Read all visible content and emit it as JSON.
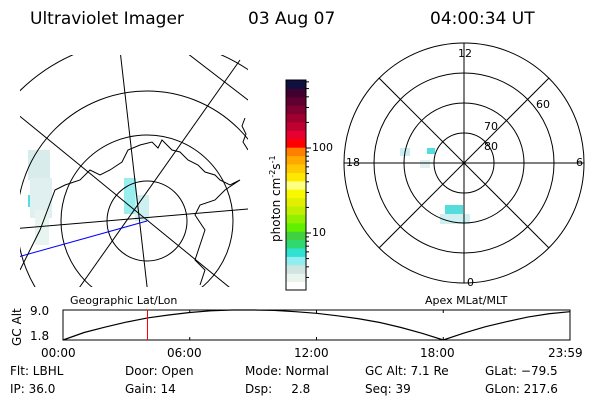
{
  "header": {
    "instrument": "Ultraviolet Imager",
    "date": "03 Aug 07",
    "time": "04:00:34 UT"
  },
  "left_map": {
    "label": "Geographic Lat/Lon"
  },
  "right_map": {
    "label": "Apex MLat/MLT",
    "mlt_labels": [
      "12",
      "18",
      "6",
      "0"
    ],
    "lat_labels": [
      "60",
      "70",
      "80"
    ]
  },
  "colorbar": {
    "unit_label": "photon cm",
    "unit_sup1": "-2",
    "unit_mid": "s",
    "unit_sup2": "-1",
    "tick_labels": [
      "100",
      "10"
    ],
    "scale": "log",
    "range": [
      2,
      630
    ],
    "colors": [
      "#ffffff",
      "#e8f4ec",
      "#d0e4e0",
      "#90eef0",
      "#30e0d0",
      "#30d870",
      "#40d040",
      "#60f000",
      "#90f000",
      "#c0f000",
      "#e0f000",
      "#f8f800",
      "#ffff80",
      "#ffe800",
      "#ffc800",
      "#ffa800",
      "#ff8000",
      "#ff0000",
      "#e80030",
      "#c00030",
      "#a00030",
      "#800030",
      "#600030",
      "#400030",
      "#101040"
    ]
  },
  "chart_data": {
    "type": "line",
    "ylabel": "GC Alt",
    "ytick_labels": [
      "9.0",
      "1.8"
    ],
    "ylim": [
      1.8,
      9.0
    ],
    "xtick_labels": [
      "00:00",
      "06:00",
      "12:00",
      "18:00",
      "23:59"
    ],
    "xlim_hours": [
      0,
      24
    ],
    "x_hours": [
      0,
      1,
      2,
      3,
      4,
      5,
      6,
      7,
      8,
      9,
      10,
      11,
      12,
      13,
      14,
      15,
      16,
      17,
      18,
      19,
      20,
      21,
      22,
      23,
      24
    ],
    "values": [
      1.8,
      3.6,
      4.9,
      6.1,
      7.1,
      7.8,
      8.4,
      8.8,
      9.0,
      9.0,
      8.9,
      8.6,
      8.2,
      7.6,
      6.9,
      6.0,
      4.8,
      3.4,
      1.8,
      3.5,
      5.0,
      6.2,
      7.3,
      8.1,
      8.6
    ],
    "cursor_hour": 4.0,
    "cursor_color": "#ff0000"
  },
  "info": [
    [
      "Flt: LBHL",
      "Door: Open",
      "Mode: Normal",
      "GC Alt: 7.1 Re",
      "GLat: −79.5"
    ],
    [
      "IP: 36.0",
      "Gain: 14",
      "Dsp:     2.8",
      "Seq: 39",
      "GLon: 217.6"
    ]
  ]
}
